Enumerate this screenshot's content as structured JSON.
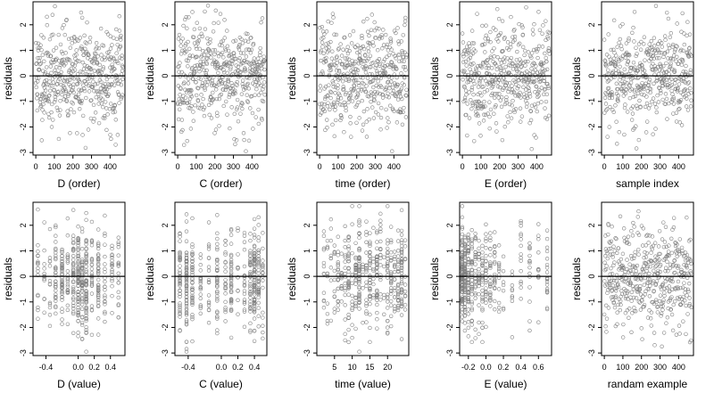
{
  "chart_data": [
    {
      "type": "scatter",
      "xlabel": "D (order)",
      "ylabel": "residuals",
      "xlim": [
        -15,
        480
      ],
      "ylim": [
        -3.1,
        2.9
      ],
      "xticks": [
        0,
        100,
        200,
        300,
        400
      ],
      "xtick_labels": [
        "0",
        "100",
        "200",
        "300",
        "400"
      ],
      "yticks": [
        -3,
        -2,
        -1,
        0,
        1,
        2
      ],
      "ytick_labels": [
        "-3",
        "-2",
        "-1",
        "0",
        "1",
        "2"
      ],
      "reference_line_y": 0,
      "n": 470,
      "x_kind": "order",
      "x_range": [
        0,
        469
      ],
      "seed": 11,
      "point_color": "#808080"
    },
    {
      "type": "scatter",
      "xlabel": "C (order)",
      "ylabel": "residuals",
      "xlim": [
        -15,
        480
      ],
      "ylim": [
        -3.1,
        2.9
      ],
      "xticks": [
        0,
        100,
        200,
        300,
        400
      ],
      "xtick_labels": [
        "0",
        "100",
        "200",
        "300",
        "400"
      ],
      "yticks": [
        -3,
        -2,
        -1,
        0,
        1,
        2
      ],
      "ytick_labels": [
        "-3",
        "-2",
        "-1",
        "0",
        "1",
        "2"
      ],
      "reference_line_y": 0,
      "n": 470,
      "x_kind": "order",
      "x_range": [
        0,
        469
      ],
      "seed": 23,
      "point_color": "#808080"
    },
    {
      "type": "scatter",
      "xlabel": "time (order)",
      "ylabel": "residuals",
      "xlim": [
        -15,
        480
      ],
      "ylim": [
        -3.1,
        2.9
      ],
      "xticks": [
        0,
        100,
        200,
        300,
        400
      ],
      "xtick_labels": [
        "0",
        "100",
        "200",
        "300",
        "400"
      ],
      "yticks": [
        -3,
        -2,
        -1,
        0,
        1,
        2
      ],
      "ytick_labels": [
        "-3",
        "-2",
        "-1",
        "0",
        "1",
        "2"
      ],
      "reference_line_y": 0,
      "n": 470,
      "x_kind": "order",
      "x_range": [
        0,
        469
      ],
      "seed": 37,
      "point_color": "#808080"
    },
    {
      "type": "scatter",
      "xlabel": "E (order)",
      "ylabel": "residuals",
      "xlim": [
        -15,
        480
      ],
      "ylim": [
        -3.1,
        2.9
      ],
      "xticks": [
        0,
        100,
        200,
        300,
        400
      ],
      "xtick_labels": [
        "0",
        "100",
        "200",
        "300",
        "400"
      ],
      "yticks": [
        -3,
        -2,
        -1,
        0,
        1,
        2
      ],
      "ytick_labels": [
        "-3",
        "-2",
        "-1",
        "0",
        "1",
        "2"
      ],
      "reference_line_y": 0,
      "n": 470,
      "x_kind": "order",
      "x_range": [
        0,
        469
      ],
      "seed": 41,
      "point_color": "#808080"
    },
    {
      "type": "scatter",
      "xlabel": "sample index",
      "ylabel": "residuals",
      "xlim": [
        -15,
        480
      ],
      "ylim": [
        -3.1,
        2.9
      ],
      "xticks": [
        0,
        100,
        200,
        300,
        400
      ],
      "xtick_labels": [
        "0",
        "100",
        "200",
        "300",
        "400"
      ],
      "yticks": [
        -3,
        -2,
        -1,
        0,
        1,
        2
      ],
      "ytick_labels": [
        "-3",
        "-2",
        "-1",
        "0",
        "1",
        "2"
      ],
      "reference_line_y": 0,
      "n": 470,
      "x_kind": "order",
      "x_range": [
        0,
        469
      ],
      "seed": 53,
      "point_color": "#808080"
    },
    {
      "type": "scatter",
      "xlabel": "D (value)",
      "ylabel": "residuals",
      "xlim": [
        -0.56,
        0.58
      ],
      "ylim": [
        -3.1,
        2.9
      ],
      "xticks": [
        -0.4,
        0.0,
        0.2,
        0.4
      ],
      "xtick_labels": [
        "-0.4",
        "0.0",
        "0.2",
        "0.4"
      ],
      "yticks": [
        -3,
        -2,
        -1,
        0,
        1,
        2
      ],
      "ytick_labels": [
        "-3",
        "-2",
        "-1",
        "0",
        "1",
        "2"
      ],
      "reference_line_y": 0,
      "n": 470,
      "x_kind": "discrete",
      "x_levels": [
        -0.5,
        -0.42,
        -0.35,
        -0.28,
        -0.2,
        -0.13,
        -0.06,
        0.0,
        0.05,
        0.1,
        0.17,
        0.25,
        0.33,
        0.42,
        0.5
      ],
      "x_level_weights": [
        1,
        1,
        1,
        2,
        3,
        2,
        3,
        4,
        3,
        4,
        2,
        2,
        1,
        1,
        1
      ],
      "seed": 61,
      "point_color": "#808080"
    },
    {
      "type": "scatter",
      "xlabel": "C (value)",
      "ylabel": "residuals",
      "xlim": [
        -0.56,
        0.55
      ],
      "ylim": [
        -3.1,
        2.9
      ],
      "xticks": [
        -0.4,
        0.0,
        0.2,
        0.4
      ],
      "xtick_labels": [
        "-0.4",
        "0.0",
        "0.2",
        "0.4"
      ],
      "yticks": [
        -3,
        -2,
        -1,
        0,
        1,
        2
      ],
      "ytick_labels": [
        "-3",
        "-2",
        "-1",
        "0",
        "1",
        "2"
      ],
      "reference_line_y": 0,
      "n": 470,
      "x_kind": "discrete",
      "x_levels": [
        -0.5,
        -0.42,
        -0.35,
        -0.25,
        -0.15,
        -0.05,
        0.05,
        0.12,
        0.2,
        0.28,
        0.35,
        0.4,
        0.45,
        0.5
      ],
      "x_level_weights": [
        2,
        4,
        3,
        1,
        1,
        2,
        1,
        2,
        1,
        1,
        2,
        4,
        2,
        1
      ],
      "seed": 73,
      "point_color": "#808080"
    },
    {
      "type": "scatter",
      "xlabel": "time (value)",
      "ylabel": "residuals",
      "xlim": [
        0,
        26
      ],
      "ylim": [
        -3.1,
        2.9
      ],
      "xticks": [
        5,
        10,
        15,
        20
      ],
      "xtick_labels": [
        "5",
        "10",
        "15",
        "20"
      ],
      "yticks": [
        -3,
        -2,
        -1,
        0,
        1,
        2
      ],
      "ytick_labels": [
        "-3",
        "-2",
        "-1",
        "0",
        "1",
        "2"
      ],
      "reference_line_y": 0,
      "n": 470,
      "x_kind": "discrete",
      "x_levels": [
        2,
        3,
        4,
        5,
        6,
        7,
        8,
        9,
        10,
        11,
        12,
        13,
        14,
        15,
        16,
        17,
        18,
        19,
        20,
        21,
        22,
        23,
        24,
        25
      ],
      "x_level_weights": [
        1,
        1,
        1,
        1,
        2,
        1,
        1,
        2,
        1,
        2,
        4,
        1,
        2,
        2,
        1,
        2,
        1,
        1,
        2,
        2,
        1,
        2,
        3,
        1
      ],
      "seed": 89,
      "point_color": "#808080"
    },
    {
      "type": "scatter",
      "xlabel": "E (value)",
      "ylabel": "residuals",
      "xlim": [
        -0.3,
        0.75
      ],
      "ylim": [
        -3.1,
        2.9
      ],
      "xticks": [
        -0.2,
        0.0,
        0.2,
        0.4,
        0.6
      ],
      "xtick_labels": [
        "-0.2",
        "0.0",
        "0.2",
        "0.4",
        "0.6"
      ],
      "yticks": [
        -3,
        -2,
        -1,
        0,
        1,
        2
      ],
      "ytick_labels": [
        "-3",
        "-2",
        "-1",
        "0",
        "1",
        "2"
      ],
      "reference_line_y": 0,
      "n": 470,
      "x_kind": "discrete",
      "x_levels": [
        -0.27,
        -0.24,
        -0.2,
        -0.16,
        -0.12,
        -0.08,
        -0.04,
        0.0,
        0.05,
        0.1,
        0.15,
        0.2,
        0.3,
        0.4,
        0.5,
        0.6,
        0.7
      ],
      "x_level_weights": [
        8,
        6,
        4,
        3,
        3,
        2,
        2,
        2,
        2,
        2,
        1,
        1,
        1,
        1,
        1,
        1,
        1
      ],
      "seed": 97,
      "point_color": "#808080"
    },
    {
      "type": "scatter",
      "xlabel": "randam example",
      "ylabel": "residuals",
      "xlim": [
        -15,
        480
      ],
      "ylim": [
        -3.1,
        2.9
      ],
      "xticks": [
        0,
        100,
        200,
        300,
        400
      ],
      "xtick_labels": [
        "0",
        "100",
        "200",
        "300",
        "400"
      ],
      "yticks": [
        -3,
        -2,
        -1,
        0,
        1,
        2
      ],
      "ytick_labels": [
        "-3",
        "-2",
        "-1",
        "0",
        "1",
        "2"
      ],
      "reference_line_y": 0,
      "n": 470,
      "x_kind": "order",
      "x_range": [
        0,
        469
      ],
      "seed": 101,
      "point_color": "#808080"
    }
  ]
}
